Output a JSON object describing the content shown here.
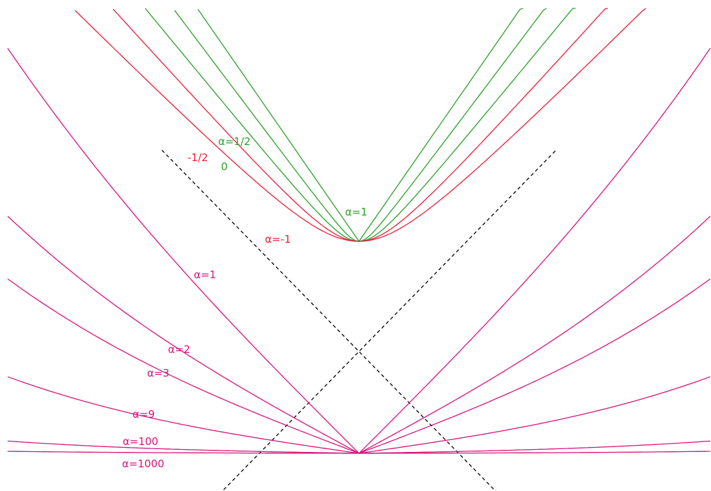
{
  "colors": {
    "green": "#2ca02c",
    "red": "#e8203a",
    "magenta": "#d6157c",
    "asymptote": "#000000"
  },
  "upper_family": {
    "vertex": {
      "u": 0,
      "v": 1
    },
    "curves": [
      {
        "alpha": 1,
        "color": "green",
        "label": "α=1"
      },
      {
        "alpha": 0.5,
        "color": "green",
        "label": "α=1/2"
      },
      {
        "alpha": 0,
        "color": "green",
        "label": "0"
      },
      {
        "alpha": -0.5,
        "color": "red",
        "label": "-1/2"
      },
      {
        "alpha": -1,
        "color": "red",
        "label": "α=-1"
      }
    ]
  },
  "lower_family": {
    "vertex": {
      "u": 0,
      "v": 0
    },
    "curves": [
      {
        "alpha": 1,
        "color": "magenta",
        "label": "α=1"
      },
      {
        "alpha": 2,
        "color": "magenta",
        "label": "α=2"
      },
      {
        "alpha": 3,
        "color": "magenta",
        "label": "α=3"
      },
      {
        "alpha": 9,
        "color": "magenta",
        "label": "α=9"
      },
      {
        "alpha": 100,
        "color": "magenta",
        "label": "α=100"
      },
      {
        "alpha": 1000,
        "color": "magenta",
        "label": "α=1000"
      }
    ]
  },
  "asymptotes": {
    "style": "dashed"
  }
}
